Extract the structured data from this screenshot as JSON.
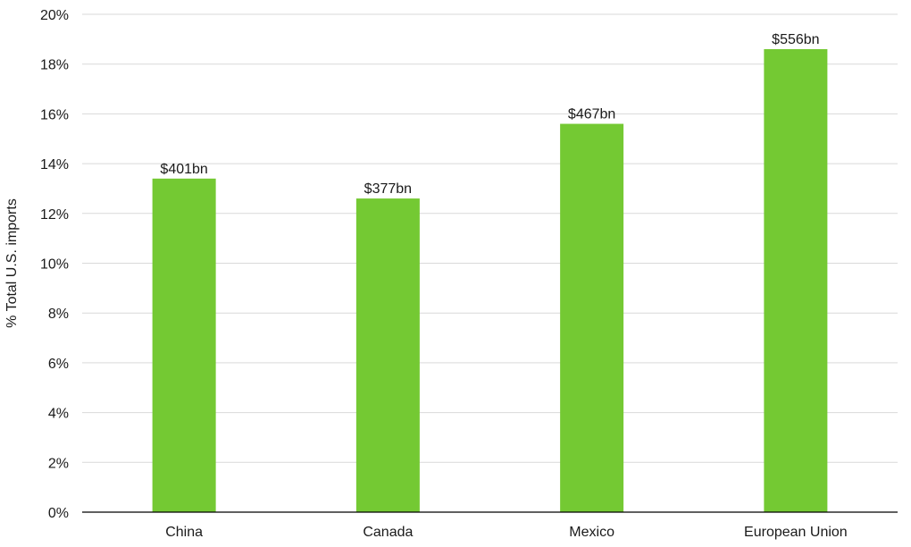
{
  "chart_data": {
    "type": "bar",
    "categories": [
      "China",
      "Canada",
      "Mexico",
      "European Union"
    ],
    "values": [
      13.4,
      12.6,
      15.6,
      18.6
    ],
    "data_labels": [
      "$401bn",
      "$377bn",
      "$467bn",
      "$556bn"
    ],
    "ylabel": "% Total U.S. imports",
    "ylim": [
      0,
      20
    ],
    "yticks": [
      0,
      2,
      4,
      6,
      8,
      10,
      12,
      14,
      16,
      18,
      20
    ],
    "ytick_labels": [
      "0%",
      "2%",
      "4%",
      "6%",
      "8%",
      "10%",
      "12%",
      "14%",
      "16%",
      "18%",
      "20%"
    ],
    "grid": true,
    "bar_color": "#74c933"
  }
}
